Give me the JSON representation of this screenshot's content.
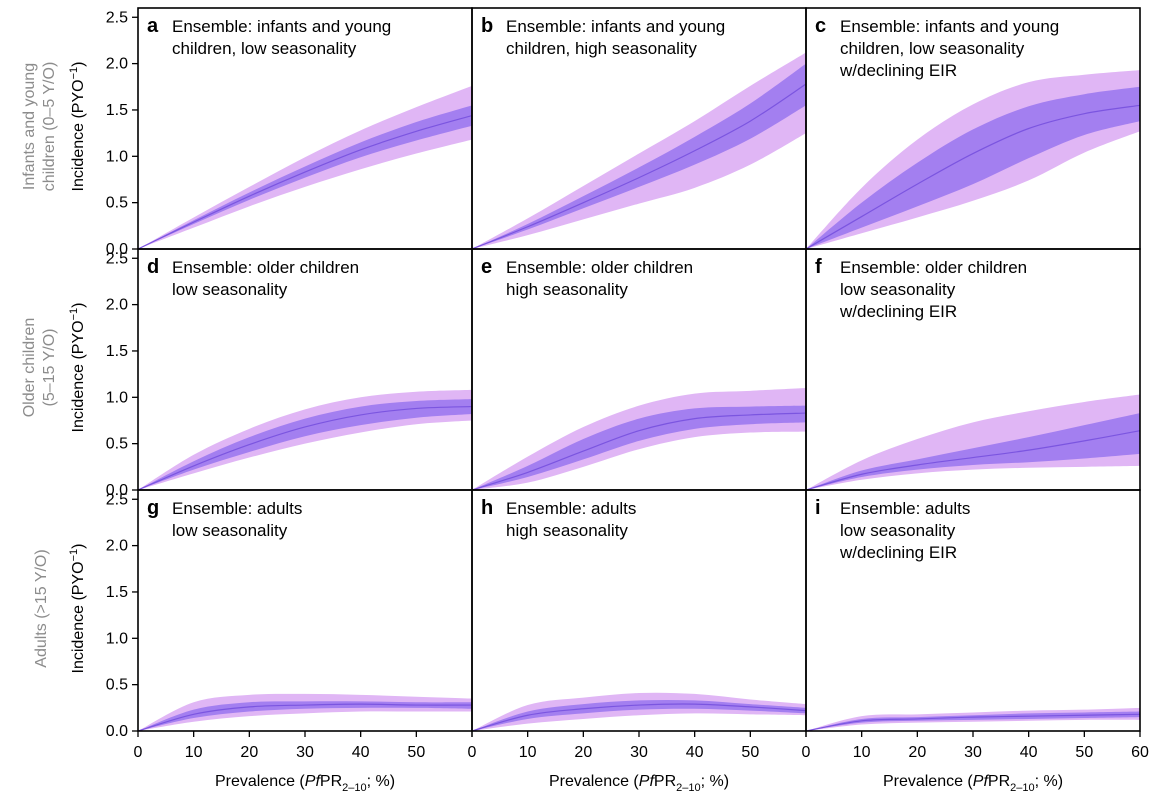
{
  "colors": {
    "outer_band": "#e0b6f5",
    "inner_band": "#a37ff0",
    "median_line": "#7b55e0",
    "row_label": "#8c8c8c",
    "axes": "#000000"
  },
  "axes": {
    "y_ticks": [
      "0.0",
      "0.5",
      "1.0",
      "1.5",
      "2.0",
      "2.5"
    ],
    "x_ticks": [
      "0",
      "10",
      "20",
      "30",
      "40",
      "50",
      "60"
    ],
    "xlabel": {
      "pre": "Prevalence (",
      "ital": "Pf",
      "mid": "PR",
      "sub": "2–10",
      "post": "; %)"
    },
    "ylabel": {
      "text": "Incidence (PYO",
      "sup": "−1",
      "close": ")"
    },
    "xlim": [
      0,
      60
    ],
    "ylim": [
      0,
      2.6
    ]
  },
  "rows": [
    {
      "label_lines": [
        "Infants and young",
        "children (0–5 Y/O)"
      ]
    },
    {
      "label_lines": [
        "Older children",
        "(5–15 Y/O)"
      ]
    },
    {
      "label_lines": [
        "Adults (>15 Y/O)"
      ]
    }
  ],
  "chart_data": [
    {
      "type": "area",
      "letter": "a",
      "title_lines": [
        "Ensemble: infants and young",
        "children, low seasonality"
      ],
      "x": [
        0,
        10,
        20,
        30,
        40,
        50,
        60
      ],
      "median": [
        0,
        0.29,
        0.57,
        0.83,
        1.07,
        1.27,
        1.44
      ],
      "inner_low": [
        0,
        0.27,
        0.53,
        0.77,
        0.99,
        1.17,
        1.33
      ],
      "inner_high": [
        0,
        0.31,
        0.61,
        0.89,
        1.15,
        1.37,
        1.55
      ],
      "outer_low": [
        0,
        0.23,
        0.46,
        0.67,
        0.86,
        1.03,
        1.18
      ],
      "outer_high": [
        0,
        0.34,
        0.67,
        0.99,
        1.28,
        1.53,
        1.76
      ]
    },
    {
      "type": "area",
      "letter": "b",
      "title_lines": [
        "Ensemble: infants and young",
        "children, high seasonality"
      ],
      "x": [
        0,
        10,
        20,
        30,
        40,
        50,
        60
      ],
      "median": [
        0,
        0.24,
        0.5,
        0.77,
        1.06,
        1.38,
        1.78
      ],
      "inner_low": [
        0,
        0.21,
        0.44,
        0.67,
        0.91,
        1.19,
        1.55
      ],
      "inner_high": [
        0,
        0.27,
        0.57,
        0.88,
        1.21,
        1.57,
        2.0
      ],
      "outer_low": [
        0,
        0.15,
        0.32,
        0.49,
        0.66,
        0.91,
        1.25
      ],
      "outer_high": [
        0,
        0.33,
        0.68,
        1.03,
        1.38,
        1.76,
        2.12
      ]
    },
    {
      "type": "area",
      "letter": "c",
      "title_lines": [
        "Ensemble: infants and young",
        "children, low seasonality",
        "w/declining EIR"
      ],
      "x": [
        0,
        10,
        20,
        30,
        40,
        50,
        60
      ],
      "median": [
        0,
        0.35,
        0.7,
        1.03,
        1.3,
        1.46,
        1.55
      ],
      "inner_low": [
        0,
        0.23,
        0.46,
        0.7,
        0.98,
        1.23,
        1.38
      ],
      "inner_high": [
        0,
        0.5,
        0.93,
        1.29,
        1.54,
        1.67,
        1.75
      ],
      "outer_low": [
        0,
        0.17,
        0.34,
        0.52,
        0.74,
        1.04,
        1.27
      ],
      "outer_high": [
        0,
        0.66,
        1.18,
        1.56,
        1.8,
        1.88,
        1.93
      ]
    },
    {
      "type": "area",
      "letter": "d",
      "title_lines": [
        "Ensemble: older children",
        "low seasonality"
      ],
      "x": [
        0,
        10,
        20,
        30,
        40,
        50,
        60
      ],
      "median": [
        0,
        0.26,
        0.49,
        0.68,
        0.81,
        0.88,
        0.9
      ],
      "inner_low": [
        0,
        0.22,
        0.41,
        0.58,
        0.7,
        0.78,
        0.82
      ],
      "inner_high": [
        0,
        0.31,
        0.57,
        0.77,
        0.9,
        0.96,
        0.98
      ],
      "outer_low": [
        0,
        0.18,
        0.35,
        0.5,
        0.62,
        0.71,
        0.75
      ],
      "outer_high": [
        0,
        0.38,
        0.66,
        0.87,
        1.0,
        1.06,
        1.08
      ]
    },
    {
      "type": "area",
      "letter": "e",
      "title_lines": [
        "Ensemble: older children",
        "high seasonality"
      ],
      "x": [
        0,
        10,
        20,
        30,
        40,
        50,
        60
      ],
      "median": [
        0,
        0.19,
        0.42,
        0.64,
        0.77,
        0.81,
        0.83
      ],
      "inner_low": [
        0,
        0.14,
        0.33,
        0.53,
        0.66,
        0.71,
        0.73
      ],
      "inner_high": [
        0,
        0.26,
        0.55,
        0.77,
        0.88,
        0.9,
        0.91
      ],
      "outer_low": [
        0,
        0.08,
        0.25,
        0.44,
        0.57,
        0.62,
        0.63
      ],
      "outer_high": [
        0,
        0.36,
        0.68,
        0.91,
        1.04,
        1.07,
        1.1
      ]
    },
    {
      "type": "area",
      "letter": "f",
      "title_lines": [
        "Ensemble: older children",
        "low seasonality",
        "w/declining EIR"
      ],
      "x": [
        0,
        10,
        20,
        30,
        40,
        50,
        60
      ],
      "median": [
        0,
        0.17,
        0.27,
        0.35,
        0.43,
        0.53,
        0.64
      ],
      "inner_low": [
        0,
        0.14,
        0.22,
        0.27,
        0.3,
        0.34,
        0.39
      ],
      "inner_high": [
        0,
        0.21,
        0.33,
        0.45,
        0.57,
        0.7,
        0.83
      ],
      "outer_low": [
        0,
        0.11,
        0.18,
        0.22,
        0.24,
        0.25,
        0.26
      ],
      "outer_high": [
        0,
        0.32,
        0.55,
        0.73,
        0.85,
        0.95,
        1.03
      ]
    },
    {
      "type": "area",
      "letter": "g",
      "title_lines": [
        "Ensemble: adults",
        "low seasonality"
      ],
      "x": [
        0,
        10,
        20,
        30,
        40,
        50,
        60
      ],
      "median": [
        0,
        0.18,
        0.26,
        0.28,
        0.29,
        0.28,
        0.28
      ],
      "inner_low": [
        0,
        0.14,
        0.21,
        0.24,
        0.25,
        0.25,
        0.24
      ],
      "inner_high": [
        0,
        0.23,
        0.31,
        0.32,
        0.32,
        0.31,
        0.31
      ],
      "outer_low": [
        0,
        0.1,
        0.16,
        0.19,
        0.21,
        0.21,
        0.21
      ],
      "outer_high": [
        0,
        0.31,
        0.39,
        0.4,
        0.39,
        0.37,
        0.35
      ]
    },
    {
      "type": "area",
      "letter": "h",
      "title_lines": [
        "Ensemble: adults",
        "high seasonality"
      ],
      "x": [
        0,
        10,
        20,
        30,
        40,
        50,
        60
      ],
      "median": [
        0,
        0.17,
        0.24,
        0.28,
        0.29,
        0.26,
        0.22
      ],
      "inner_low": [
        0,
        0.13,
        0.19,
        0.23,
        0.24,
        0.22,
        0.19
      ],
      "inner_high": [
        0,
        0.21,
        0.29,
        0.33,
        0.33,
        0.29,
        0.25
      ],
      "outer_low": [
        0,
        0.08,
        0.13,
        0.17,
        0.19,
        0.18,
        0.17
      ],
      "outer_high": [
        0,
        0.28,
        0.36,
        0.41,
        0.4,
        0.34,
        0.29
      ]
    },
    {
      "type": "area",
      "letter": "i",
      "title_lines": [
        "Ensemble: adults",
        "low seasonality",
        "w/declining EIR"
      ],
      "x": [
        0,
        10,
        20,
        30,
        40,
        50,
        60
      ],
      "median": [
        0,
        0.11,
        0.13,
        0.15,
        0.16,
        0.17,
        0.18
      ],
      "inner_low": [
        0,
        0.09,
        0.11,
        0.12,
        0.13,
        0.14,
        0.15
      ],
      "inner_high": [
        0,
        0.13,
        0.15,
        0.17,
        0.19,
        0.2,
        0.21
      ],
      "outer_low": [
        0,
        0.07,
        0.09,
        0.1,
        0.11,
        0.12,
        0.12
      ],
      "outer_high": [
        0,
        0.16,
        0.18,
        0.2,
        0.22,
        0.23,
        0.25
      ]
    }
  ]
}
